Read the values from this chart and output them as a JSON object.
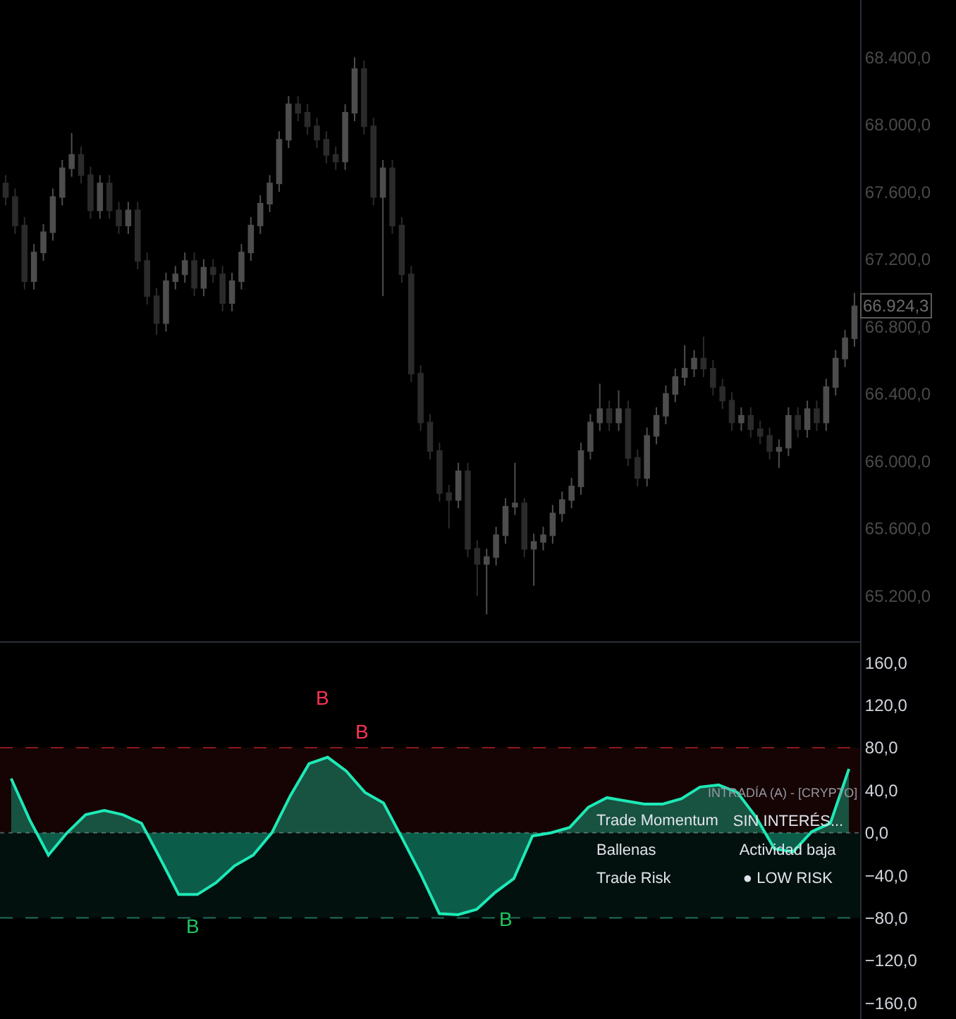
{
  "chart_data": [
    {
      "type": "candlestick",
      "tick_labels": "y",
      "categories": [
        null,
        null,
        null,
        null,
        null,
        null,
        null,
        null,
        null,
        null,
        null,
        null,
        null,
        null,
        null,
        null,
        null,
        null,
        null,
        null,
        null,
        null,
        null,
        null,
        null,
        null,
        null,
        null,
        null,
        null,
        null,
        null,
        null,
        null,
        null,
        null,
        null,
        null,
        null,
        null,
        null,
        null,
        null,
        null,
        null,
        null,
        null,
        null,
        null,
        null,
        null,
        null,
        null,
        null,
        null,
        null,
        null,
        null,
        null,
        null,
        null,
        null,
        null,
        null,
        null,
        null,
        null,
        null,
        null,
        null,
        null,
        null,
        null,
        null,
        null,
        null,
        null,
        null,
        null,
        null,
        null,
        null,
        null,
        null,
        null,
        null,
        null,
        null,
        null,
        null,
        null
      ],
      "colors": [
        "#2b2b2b",
        "#2b2b2b",
        "#2b2b2b",
        "#4d4d4d",
        "#4d4d4d",
        "#4d4d4d",
        "#4d4d4d",
        "#4d4d4d",
        "#2b2b2b",
        "#2b2b2b",
        "#4d4d4d",
        "#2b2b2b",
        "#2b2b2b",
        "#4d4d4d",
        "#2b2b2b",
        "#2b2b2b",
        "#2b2b2b",
        "#4d4d4d",
        "#4d4d4d",
        "#4d4d4d",
        "#2b2b2b",
        "#4d4d4d",
        "#2b2b2b",
        "#2b2b2b",
        "#4d4d4d",
        "#4d4d4d",
        "#4d4d4d",
        "#4d4d4d",
        "#4d4d4d",
        "#4d4d4d",
        "#4d4d4d",
        "#2b2b2b",
        "#2b2b2b",
        "#2b2b2b",
        "#2b2b2b",
        "#2b2b2b",
        "#4d4d4d",
        "#4d4d4d",
        "#2b2b2b",
        "#2b2b2b",
        "#4d4d4d",
        "#2b2b2b",
        "#2b2b2b",
        "#2b2b2b",
        "#2b2b2b",
        "#2b2b2b",
        "#2b2b2b",
        "#2b2b2b",
        "#4d4d4d",
        "#2b2b2b",
        "#2b2b2b",
        "#4d4d4d",
        "#4d4d4d",
        "#4d4d4d",
        "#4d4d4d",
        "#2b2b2b",
        "#4d4d4d",
        "#4d4d4d",
        "#4d4d4d",
        "#4d4d4d",
        "#4d4d4d",
        "#4d4d4d",
        "#4d4d4d",
        "#4d4d4d",
        "#2b2b2b",
        "#4d4d4d",
        "#2b2b2b",
        "#2b2b2b",
        "#4d4d4d",
        "#4d4d4d",
        "#4d4d4d",
        "#4d4d4d",
        "#4d4d4d",
        "#4d4d4d",
        "#2b2b2b",
        "#2b2b2b",
        "#2b2b2b",
        "#2b2b2b",
        "#4d4d4d",
        "#2b2b2b",
        "#2b2b2b",
        "#2b2b2b",
        "#4d4d4d",
        "#4d4d4d",
        "#2b2b2b",
        "#4d4d4d",
        "#2b2b2b",
        "#4d4d4d",
        "#4d4d4d",
        "#4d4d4d",
        "#4d4d4d"
      ],
      "ohlc": [
        [
          67650,
          67700,
          67520,
          67570
        ],
        [
          67570,
          67620,
          67350,
          67400
        ],
        [
          67400,
          67450,
          67020,
          67070
        ],
        [
          67070,
          67290,
          67020,
          67240
        ],
        [
          67240,
          67410,
          67190,
          67360
        ],
        [
          67360,
          67620,
          67310,
          67570
        ],
        [
          67570,
          67790,
          67520,
          67740
        ],
        [
          67740,
          67950,
          67690,
          67820
        ],
        [
          67820,
          67870,
          67650,
          67700
        ],
        [
          67700,
          67750,
          67440,
          67490
        ],
        [
          67490,
          67700,
          67440,
          67650
        ],
        [
          67650,
          67700,
          67440,
          67490
        ],
        [
          67490,
          67540,
          67350,
          67400
        ],
        [
          67400,
          67540,
          67350,
          67490
        ],
        [
          67490,
          67540,
          67140,
          67190
        ],
        [
          67190,
          67240,
          66930,
          66980
        ],
        [
          66980,
          67030,
          66750,
          66820
        ],
        [
          66820,
          67120,
          66770,
          67070
        ],
        [
          67070,
          67160,
          67020,
          67110
        ],
        [
          67110,
          67240,
          67060,
          67190
        ],
        [
          67190,
          67240,
          66980,
          67030
        ],
        [
          67030,
          67200,
          66980,
          67150
        ],
        [
          67150,
          67200,
          67060,
          67110
        ],
        [
          67110,
          67160,
          66890,
          66940
        ],
        [
          66940,
          67120,
          66890,
          67070
        ],
        [
          67070,
          67290,
          67020,
          67240
        ],
        [
          67240,
          67450,
          67190,
          67400
        ],
        [
          67400,
          67580,
          67350,
          67530
        ],
        [
          67530,
          67700,
          67480,
          67650
        ],
        [
          67650,
          67960,
          67600,
          67910
        ],
        [
          67910,
          68170,
          67860,
          68120
        ],
        [
          68120,
          68170,
          68020,
          68070
        ],
        [
          68070,
          68120,
          67940,
          67990
        ],
        [
          67990,
          68040,
          67860,
          67910
        ],
        [
          67910,
          67960,
          67770,
          67820
        ],
        [
          67820,
          67870,
          67730,
          67780
        ],
        [
          67780,
          68120,
          67730,
          68070
        ],
        [
          68070,
          68400,
          68020,
          68330
        ],
        [
          68330,
          68380,
          67940,
          67990
        ],
        [
          67990,
          68040,
          67520,
          67570
        ],
        [
          67570,
          67790,
          66980,
          67740
        ],
        [
          67740,
          67790,
          67350,
          67400
        ],
        [
          67400,
          67450,
          67060,
          67110
        ],
        [
          67110,
          67160,
          66470,
          66520
        ],
        [
          66520,
          66570,
          66180,
          66230
        ],
        [
          66230,
          66280,
          66010,
          66060
        ],
        [
          66060,
          66110,
          65760,
          65810
        ],
        [
          65810,
          65860,
          65600,
          65770
        ],
        [
          65770,
          65990,
          65720,
          65940
        ],
        [
          65940,
          65990,
          65430,
          65480
        ],
        [
          65480,
          65530,
          65200,
          65390
        ],
        [
          65390,
          65480,
          65090,
          65430
        ],
        [
          65430,
          65610,
          65380,
          65560
        ],
        [
          65560,
          65780,
          65510,
          65730
        ],
        [
          65730,
          65990,
          65680,
          65750
        ],
        [
          65750,
          65780,
          65430,
          65480
        ],
        [
          65480,
          65570,
          65260,
          65520
        ],
        [
          65520,
          65610,
          65470,
          65560
        ],
        [
          65560,
          65740,
          65510,
          65690
        ],
        [
          65690,
          65820,
          65640,
          65770
        ],
        [
          65770,
          65900,
          65720,
          65850
        ],
        [
          65850,
          66110,
          65800,
          66060
        ],
        [
          66060,
          66280,
          66010,
          66230
        ],
        [
          66230,
          66460,
          66180,
          66310
        ],
        [
          66310,
          66360,
          66180,
          66230
        ],
        [
          66230,
          66420,
          66180,
          66310
        ],
        [
          66310,
          66360,
          65970,
          66020
        ],
        [
          66020,
          66070,
          65850,
          65900
        ],
        [
          65900,
          66200,
          65850,
          66150
        ],
        [
          66150,
          66320,
          66100,
          66270
        ],
        [
          66270,
          66450,
          66220,
          66400
        ],
        [
          66400,
          66550,
          66350,
          66500
        ],
        [
          66500,
          66690,
          66450,
          66550
        ],
        [
          66550,
          66660,
          66500,
          66610
        ],
        [
          66610,
          66740,
          66500,
          66550
        ],
        [
          66550,
          66600,
          66390,
          66440
        ],
        [
          66440,
          66490,
          66310,
          66360
        ],
        [
          66360,
          66410,
          66180,
          66230
        ],
        [
          66230,
          66320,
          66180,
          66270
        ],
        [
          66270,
          66320,
          66140,
          66190
        ],
        [
          66190,
          66240,
          66100,
          66150
        ],
        [
          66150,
          66200,
          66010,
          66060
        ],
        [
          66060,
          66130,
          65960,
          66080
        ],
        [
          66080,
          66320,
          66030,
          66270
        ],
        [
          66270,
          66320,
          66140,
          66190
        ],
        [
          66190,
          66360,
          66140,
          66310
        ],
        [
          66310,
          66360,
          66180,
          66230
        ],
        [
          66230,
          66490,
          66180,
          66440
        ],
        [
          66440,
          66660,
          66390,
          66610
        ],
        [
          66610,
          66780,
          66560,
          66730
        ],
        [
          66730,
          67000,
          66680,
          66920
        ]
      ],
      "ylim": [
        64930,
        68740
      ],
      "yticks": [
        {
          "value": 65200,
          "label": "65.200,0"
        },
        {
          "value": 65600,
          "label": "65.600,0"
        },
        {
          "value": 66000,
          "label": "66.000,0"
        },
        {
          "value": 66400,
          "label": "66.400,0"
        },
        {
          "value": 66800,
          "label": "66.800,0"
        },
        {
          "value": 67200,
          "label": "67.200,0"
        },
        {
          "value": 67600,
          "label": "67.600,0"
        },
        {
          "value": 68000,
          "label": "68.000,0"
        },
        {
          "value": 68400,
          "label": "68.400,0"
        }
      ],
      "annotations": [
        "66.924,3"
      ]
    },
    {
      "type": "area",
      "tick_labels": "y",
      "categories": [
        null,
        null,
        null,
        null,
        null,
        null,
        null,
        null,
        null,
        null,
        null,
        null,
        null,
        null,
        null,
        null,
        null,
        null,
        null,
        null,
        null,
        null,
        null,
        null,
        null,
        null,
        null,
        null,
        null,
        null,
        null,
        null,
        null,
        null,
        null,
        null,
        null,
        null,
        null,
        null,
        null,
        null,
        null,
        null,
        null,
        null
      ],
      "series": [
        {
          "color": "#1de9b6",
          "values": [
            51,
            12,
            -21,
            0,
            17,
            21,
            17,
            9,
            -24,
            -58,
            -58,
            -47,
            -31,
            -21,
            0,
            35,
            65,
            71,
            58,
            38,
            28,
            -5,
            -39,
            -76,
            -77,
            -72,
            -56,
            -43,
            -3,
            0,
            5,
            24,
            33,
            30,
            27,
            27,
            32,
            43,
            45,
            38,
            15,
            -15,
            -18,
            1,
            9,
            60
          ]
        }
      ],
      "ylim": [
        -175,
        180
      ],
      "yticks": [
        {
          "value": -160,
          "label": "−160,0"
        },
        {
          "value": -120,
          "label": "−120,0"
        },
        {
          "value": -80,
          "label": "−80,0"
        },
        {
          "value": -40,
          "label": "−40,0"
        },
        {
          "value": 0,
          "label": "0,0"
        },
        {
          "value": 40,
          "label": "40,0"
        },
        {
          "value": 80,
          "label": "80,0"
        },
        {
          "value": 120,
          "label": "120,0"
        },
        {
          "value": 160,
          "label": "160,0"
        }
      ],
      "ref_lines": [
        {
          "axis": "y",
          "value": 80,
          "color": "#8b1a1a",
          "line_style": "dashed"
        },
        {
          "axis": "y",
          "value": -80,
          "color": "#1f6f5f",
          "line_style": "dashed"
        },
        {
          "axis": "y",
          "value": 0,
          "color": "#555555",
          "line_style": "dotted"
        }
      ],
      "bands": [
        {
          "axis": "y",
          "from": 0,
          "to": 80,
          "color": "#160303"
        },
        {
          "axis": "y",
          "from": -80,
          "to": 0,
          "color": "#03110e"
        }
      ],
      "annotations": [
        "B",
        "B",
        "B",
        "B",
        "INTRADÍA (A) - [CRYPTO]",
        "Trade Momentum",
        "SIN INTERÉS...",
        "Ballenas",
        "Actividad baja",
        "Trade Risk",
        "● LOW RISK"
      ]
    }
  ]
}
